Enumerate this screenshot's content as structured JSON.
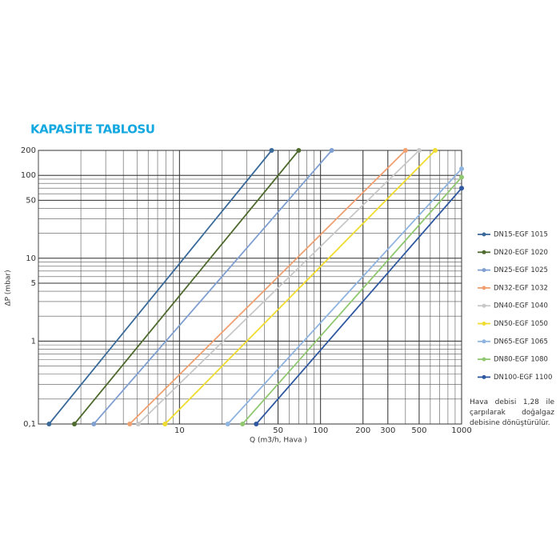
{
  "chart_data": {
    "type": "line",
    "title": "KAPASİTE TABLOSU",
    "x_label": "Q (m3/h, Hava )",
    "y_label": "ΔP (mbar)",
    "xscale": "log",
    "yscale": "log",
    "grid": true,
    "minor_grid": true,
    "legend": "right",
    "xlim": [
      1,
      1000
    ],
    "ylim": [
      0.1,
      200
    ],
    "xticks": [
      10,
      50,
      100,
      200,
      300,
      500,
      1000
    ],
    "yticks": [
      {
        "value": 0.1,
        "label": "0,1"
      },
      1,
      5,
      10,
      50,
      100,
      200
    ],
    "series": [
      {
        "name": "DN15-EGF 1015",
        "color": "#3a6a9a",
        "x": [
          1.19,
          45
        ],
        "values": [
          0.1,
          200
        ]
      },
      {
        "name": "DN20-EGF 1020",
        "color": "#4f6a2e",
        "x": [
          1.8,
          70
        ],
        "values": [
          0.1,
          200
        ]
      },
      {
        "name": "DN25-EGF 1025",
        "color": "#7f9fd0",
        "x": [
          2.47,
          120
        ],
        "values": [
          0.1,
          200
        ]
      },
      {
        "name": "DN32-EGF 1032",
        "color": "#f0a070",
        "x": [
          4.44,
          400
        ],
        "values": [
          0.1,
          200
        ]
      },
      {
        "name": "DN40-EGF 1040",
        "color": "#c8c8c8",
        "x": [
          5.1,
          500
        ],
        "values": [
          0.1,
          200
        ]
      },
      {
        "name": "DN50-EGF 1050",
        "color": "#f0dc30",
        "x": [
          7.9,
          650
        ],
        "values": [
          0.1,
          200
        ]
      },
      {
        "name": "DN65-EGF 1065",
        "color": "#8fb4e0",
        "x": [
          22,
          1000
        ],
        "values": [
          0.1,
          120
        ]
      },
      {
        "name": "DN80-EGF 1080",
        "color": "#90c870",
        "x": [
          28,
          1000
        ],
        "values": [
          0.1,
          95
        ]
      },
      {
        "name": "DN100-EGF 1100",
        "color": "#2f58a0",
        "x": [
          35,
          1000
        ],
        "values": [
          0.1,
          70
        ]
      }
    ],
    "note": "Hava debisi 1,28 ile çarpılarak doğalgaz debisine dönüştürülür."
  }
}
